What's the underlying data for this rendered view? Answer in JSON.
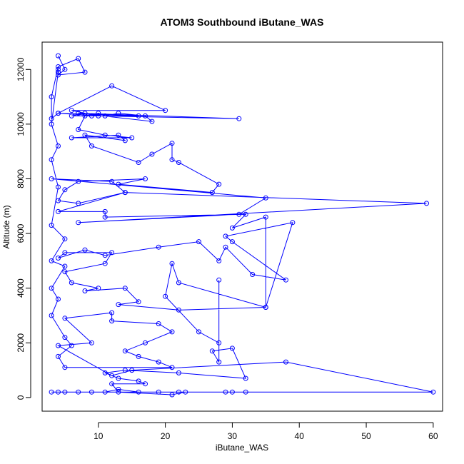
{
  "chart_data": {
    "type": "line",
    "title": "ATOM3 Southbound iButane_WAS",
    "xlabel": "iButane_WAS",
    "ylabel": "Altitude (m)",
    "xlim": [
      1.6,
      61.4
    ],
    "ylim": [
      -500,
      13000
    ],
    "xticks": [
      10,
      20,
      30,
      40,
      50,
      60
    ],
    "yticks": [
      0,
      2000,
      4000,
      6000,
      8000,
      10000,
      12000
    ],
    "grid": false,
    "legend": "none",
    "color": "#0000ff",
    "series": [
      {
        "points": [
          [
            4,
            12500
          ],
          [
            5,
            12000
          ],
          [
            4,
            11800
          ],
          [
            8,
            11900
          ],
          [
            7,
            12400
          ],
          [
            4,
            12100
          ],
          [
            3,
            11000
          ],
          [
            3,
            10200
          ],
          [
            4,
            10400
          ],
          [
            12,
            11400
          ],
          [
            20,
            10500
          ],
          [
            6,
            10500
          ],
          [
            8,
            10400
          ],
          [
            6,
            10300
          ],
          [
            9,
            10300
          ],
          [
            10,
            10400
          ],
          [
            11,
            10300
          ],
          [
            13,
            10400
          ],
          [
            17,
            10300
          ],
          [
            18,
            10100
          ],
          [
            7,
            10400
          ],
          [
            31,
            10200
          ],
          [
            10,
            10300
          ],
          [
            4,
            10400
          ],
          [
            16,
            10300
          ],
          [
            8,
            10300
          ],
          [
            7,
            9800
          ],
          [
            11,
            9600
          ],
          [
            15,
            9500
          ],
          [
            6,
            9500
          ],
          [
            13,
            9600
          ],
          [
            14,
            9400
          ],
          [
            8,
            9600
          ],
          [
            9,
            9200
          ],
          [
            16,
            8600
          ],
          [
            18,
            8900
          ],
          [
            21,
            9300
          ],
          [
            21,
            8700
          ],
          [
            22,
            8600
          ],
          [
            28,
            7800
          ],
          [
            27,
            7500
          ],
          [
            13,
            7800
          ],
          [
            17,
            8000
          ],
          [
            7,
            7900
          ],
          [
            5,
            7600
          ],
          [
            4,
            7200
          ],
          [
            7,
            7100
          ],
          [
            14,
            7500
          ],
          [
            12,
            7900
          ],
          [
            3,
            8000
          ],
          [
            35,
            7300
          ],
          [
            31,
            6700
          ],
          [
            7,
            6400
          ],
          [
            59,
            7100
          ],
          [
            14,
            7500
          ],
          [
            4,
            6800
          ],
          [
            11,
            6800
          ],
          [
            11,
            6600
          ],
          [
            32,
            6700
          ],
          [
            30,
            6200
          ],
          [
            35,
            6600
          ],
          [
            35,
            3300
          ],
          [
            39,
            6400
          ],
          [
            29,
            5900
          ],
          [
            30,
            5700
          ],
          [
            38,
            4300
          ],
          [
            33,
            4500
          ],
          [
            29,
            5500
          ],
          [
            28,
            5000
          ],
          [
            25,
            5700
          ],
          [
            19,
            5500
          ],
          [
            11,
            5200
          ],
          [
            8,
            5400
          ],
          [
            4,
            5100
          ],
          [
            5,
            5300
          ],
          [
            12,
            5300
          ],
          [
            11,
            4900
          ],
          [
            5,
            4600
          ],
          [
            6,
            4200
          ],
          [
            10,
            4000
          ],
          [
            8,
            3900
          ],
          [
            14,
            4000
          ],
          [
            16,
            3500
          ],
          [
            13,
            3400
          ],
          [
            22,
            3200
          ],
          [
            35,
            3300
          ],
          [
            22,
            4200
          ],
          [
            21,
            4900
          ],
          [
            20,
            3700
          ],
          [
            25,
            2400
          ],
          [
            28,
            2000
          ],
          [
            28,
            4300
          ],
          [
            28,
            1300
          ],
          [
            27,
            1700
          ],
          [
            30,
            1800
          ],
          [
            32,
            700
          ],
          [
            22,
            900
          ],
          [
            14,
            1000
          ],
          [
            11,
            900
          ],
          [
            13,
            700
          ],
          [
            16,
            600
          ],
          [
            17,
            500
          ],
          [
            12,
            500
          ],
          [
            13,
            200
          ],
          [
            21,
            100
          ],
          [
            23,
            200
          ],
          [
            32,
            200
          ],
          [
            29,
            200
          ],
          [
            30,
            200
          ],
          [
            5,
            200
          ],
          [
            7,
            200
          ],
          [
            3,
            200
          ],
          [
            9,
            200
          ],
          [
            4,
            200
          ],
          [
            11,
            200
          ],
          [
            13,
            300
          ],
          [
            16,
            200
          ],
          [
            19,
            200
          ],
          [
            22,
            200
          ],
          [
            60,
            200
          ],
          [
            38,
            1300
          ],
          [
            15,
            1000
          ],
          [
            12,
            800
          ],
          [
            4,
            1900
          ],
          [
            9,
            2000
          ],
          [
            5,
            2900
          ],
          [
            12,
            3100
          ],
          [
            12,
            2800
          ],
          [
            19,
            2700
          ],
          [
            21,
            2400
          ],
          [
            17,
            2000
          ],
          [
            14,
            1700
          ],
          [
            16,
            1500
          ],
          [
            19,
            1300
          ],
          [
            21,
            1100
          ],
          [
            5,
            1100
          ],
          [
            4,
            1500
          ],
          [
            6,
            1900
          ],
          [
            5,
            2200
          ],
          [
            3,
            3000
          ],
          [
            4,
            3600
          ],
          [
            3,
            4000
          ],
          [
            5,
            4800
          ],
          [
            3,
            5000
          ],
          [
            5,
            5800
          ],
          [
            3,
            6300
          ],
          [
            4,
            7700
          ],
          [
            3,
            8700
          ],
          [
            4,
            9200
          ],
          [
            3,
            10000
          ],
          [
            4,
            11900
          ],
          [
            4,
            12000
          ]
        ]
      }
    ]
  }
}
